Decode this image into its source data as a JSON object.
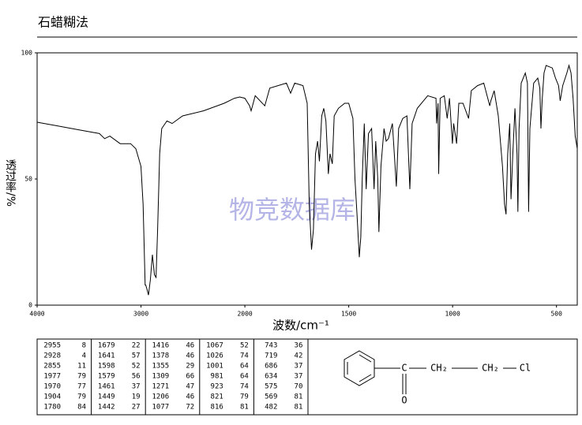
{
  "chart_data": {
    "type": "line",
    "title": "石蜡糊法",
    "xlabel": "波数/cm⁻¹",
    "ylabel": "透过率/%",
    "watermark": "物竞数据库",
    "xlim": [
      4000,
      400
    ],
    "xticks": [
      4000,
      3000,
      2000,
      1500,
      1000,
      500
    ],
    "ylim": [
      0,
      100
    ],
    "yticks": [
      0,
      50,
      100
    ],
    "color": "#000000",
    "x": [
      4000,
      3800,
      3600,
      3400,
      3350,
      3300,
      3200,
      3100,
      3050,
      3000,
      2980,
      2960,
      2955,
      2940,
      2928,
      2910,
      2890,
      2870,
      2855,
      2840,
      2820,
      2800,
      2750,
      2700,
      2600,
      2400,
      2200,
      2100,
      2050,
      2000,
      1977,
      1970,
      1950,
      1904,
      1880,
      1800,
      1780,
      1760,
      1720,
      1700,
      1690,
      1679,
      1670,
      1660,
      1650,
      1641,
      1630,
      1620,
      1610,
      1598,
      1590,
      1579,
      1570,
      1550,
      1520,
      1500,
      1480,
      1470,
      1461,
      1449,
      1442,
      1435,
      1425,
      1416,
      1405,
      1390,
      1378,
      1370,
      1360,
      1355,
      1345,
      1330,
      1320,
      1309,
      1290,
      1271,
      1260,
      1240,
      1220,
      1206,
      1195,
      1170,
      1120,
      1080,
      1077,
      1070,
      1067,
      1060,
      1040,
      1026,
      1015,
      1001,
      995,
      981,
      970,
      950,
      923,
      910,
      880,
      850,
      821,
      816,
      800,
      780,
      760,
      750,
      743,
      735,
      725,
      719,
      710,
      700,
      690,
      686,
      680,
      670,
      650,
      640,
      634,
      628,
      610,
      590,
      580,
      575,
      569,
      560,
      550,
      520,
      505,
      490,
      482,
      470,
      450,
      440,
      430,
      420,
      410,
      400
    ],
    "y": [
      72.5,
      71,
      69.5,
      68,
      66,
      67,
      64,
      64,
      62,
      55,
      40,
      8,
      8,
      6,
      4,
      10,
      20,
      12,
      11,
      30,
      60,
      70,
      73,
      72,
      75,
      77,
      80,
      82,
      82.5,
      82,
      79,
      77,
      83,
      79,
      86,
      88,
      84,
      88,
      87,
      80,
      40,
      22,
      30,
      60,
      65,
      57,
      75,
      78,
      73,
      52,
      60,
      56,
      75,
      78,
      80,
      80,
      74,
      50,
      37,
      19,
      27,
      50,
      72,
      46,
      68,
      70,
      46,
      65,
      50,
      29,
      55,
      70,
      65,
      66,
      72,
      47,
      70,
      74,
      75,
      46,
      72,
      78,
      83,
      82,
      72,
      80,
      52,
      82,
      83,
      74,
      82,
      64,
      72,
      64,
      80,
      80,
      74,
      85,
      87,
      88,
      79,
      81,
      85,
      75,
      55,
      40,
      36,
      60,
      72,
      42,
      60,
      78,
      60,
      37,
      70,
      88,
      92,
      88,
      37,
      70,
      88,
      90,
      86,
      70,
      81,
      92,
      95,
      94,
      90,
      87,
      81,
      87,
      92,
      95,
      92,
      82,
      67,
      62
    ]
  },
  "peak_table": [
    [
      [
        2955,
        8
      ],
      [
        2928,
        4
      ],
      [
        2855,
        11
      ],
      [
        1977,
        79
      ],
      [
        1970,
        77
      ],
      [
        1904,
        79
      ],
      [
        1780,
        84
      ]
    ],
    [
      [
        1679,
        22
      ],
      [
        1641,
        57
      ],
      [
        1598,
        52
      ],
      [
        1579,
        56
      ],
      [
        1461,
        37
      ],
      [
        1449,
        19
      ],
      [
        1442,
        27
      ]
    ],
    [
      [
        1416,
        46
      ],
      [
        1378,
        46
      ],
      [
        1355,
        29
      ],
      [
        1309,
        66
      ],
      [
        1271,
        47
      ],
      [
        1206,
        46
      ],
      [
        1077,
        72
      ]
    ],
    [
      [
        1067,
        52
      ],
      [
        1026,
        74
      ],
      [
        1001,
        64
      ],
      [
        981,
        64
      ],
      [
        923,
        74
      ],
      [
        821,
        79
      ],
      [
        816,
        81
      ]
    ],
    [
      [
        743,
        36
      ],
      [
        719,
        42
      ],
      [
        686,
        37
      ],
      [
        634,
        37
      ],
      [
        575,
        70
      ],
      [
        569,
        81
      ],
      [
        482,
        81
      ]
    ]
  ],
  "structure": {
    "atoms": [
      "C",
      "O",
      "CH₂",
      "CH₂",
      "Cl"
    ]
  }
}
